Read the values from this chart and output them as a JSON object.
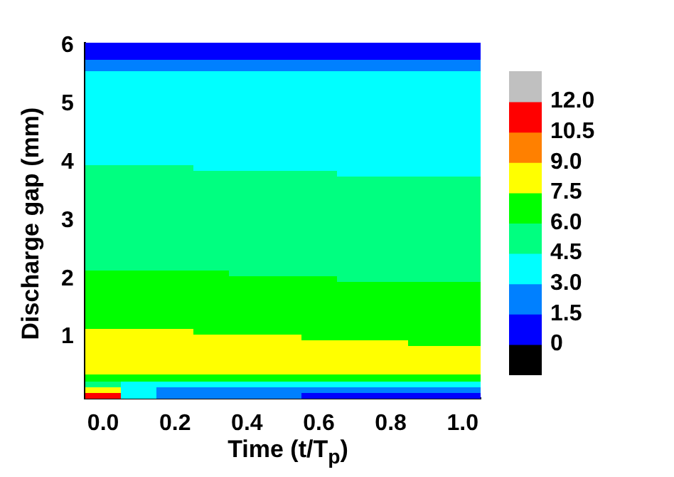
{
  "chart_data": {
    "type": "heatmap",
    "xlabel": "Time (t/T$_{p}$)",
    "ylabel": "Discharge gap (mm)",
    "categories": [
      "0.0",
      null,
      "0.2",
      null,
      "0.4",
      null,
      "0.6",
      null,
      "0.8",
      null,
      "1.0"
    ],
    "y_categories": [
      "6",
      null,
      null,
      null,
      null,
      null,
      null,
      null,
      null,
      null,
      "5",
      null,
      null,
      null,
      null,
      null,
      null,
      null,
      null,
      null,
      "4",
      null,
      null,
      null,
      null,
      null,
      null,
      null,
      null,
      null,
      "3",
      null,
      null,
      null,
      null,
      null,
      null,
      null,
      null,
      null,
      "2",
      null,
      null,
      null,
      null,
      null,
      null,
      null,
      null,
      null,
      "1",
      null,
      null,
      null,
      null,
      null,
      null,
      null,
      null,
      null,
      null
    ],
    "clim": [
      -1.5,
      13.5
    ],
    "cticks": [
      0,
      1.5,
      {
        "value": 3,
        "label": "3.0"
      },
      4.5,
      {
        "value": 6,
        "label": "6.0"
      },
      7.5,
      {
        "value": 9,
        "label": "9.0"
      },
      10.5,
      {
        "value": 12,
        "label": "12.0"
      }
    ],
    "colors": [
      "#000000",
      "#0000ff",
      "#0080ff",
      "#00ffff",
      "#00ff80",
      "#00ff00",
      "#ffff00",
      "#ff8000",
      "#ff0000",
      "#c0c0c0"
    ],
    "cells": [
      [
        0.75,
        0.75,
        0.75,
        0.75,
        0.75,
        0.75,
        0.75,
        0.75,
        0.75,
        0.75,
        0.75
      ],
      [
        0.75,
        0.75,
        0.75,
        0.75,
        0.75,
        0.75,
        0.75,
        0.75,
        0.75,
        0.75,
        0.75
      ],
      [
        0.75,
        0.75,
        0.75,
        0.75,
        0.75,
        0.75,
        0.75,
        0.75,
        0.75,
        0.75,
        0.75
      ],
      [
        2.25,
        2.25,
        2.25,
        2.25,
        2.25,
        2.25,
        2.25,
        2.25,
        2.25,
        2.25,
        2.25
      ],
      [
        2.25,
        2.25,
        2.25,
        2.25,
        2.25,
        2.25,
        2.25,
        2.25,
        2.25,
        2.25,
        2.25
      ],
      [
        3.75,
        3.75,
        3.75,
        3.75,
        3.75,
        3.75,
        3.75,
        3.75,
        3.75,
        3.75,
        3.75
      ],
      [
        3.75,
        3.75,
        3.75,
        3.75,
        3.75,
        3.75,
        3.75,
        3.75,
        3.75,
        3.75,
        3.75
      ],
      [
        3.75,
        3.75,
        3.75,
        3.75,
        3.75,
        3.75,
        3.75,
        3.75,
        3.75,
        3.75,
        3.75
      ],
      [
        3.75,
        3.75,
        3.75,
        3.75,
        3.75,
        3.75,
        3.75,
        3.75,
        3.75,
        3.75,
        3.75
      ],
      [
        3.75,
        3.75,
        3.75,
        3.75,
        3.75,
        3.75,
        3.75,
        3.75,
        3.75,
        3.75,
        3.75
      ],
      [
        3.75,
        3.75,
        3.75,
        3.75,
        3.75,
        3.75,
        3.75,
        3.75,
        3.75,
        3.75,
        3.75
      ],
      [
        3.75,
        3.75,
        3.75,
        3.75,
        3.75,
        3.75,
        3.75,
        3.75,
        3.75,
        3.75,
        3.75
      ],
      [
        3.75,
        3.75,
        3.75,
        3.75,
        3.75,
        3.75,
        3.75,
        3.75,
        3.75,
        3.75,
        3.75
      ],
      [
        3.75,
        3.75,
        3.75,
        3.75,
        3.75,
        3.75,
        3.75,
        3.75,
        3.75,
        3.75,
        3.75
      ],
      [
        3.75,
        3.75,
        3.75,
        3.75,
        3.75,
        3.75,
        3.75,
        3.75,
        3.75,
        3.75,
        3.75
      ],
      [
        3.75,
        3.75,
        3.75,
        3.75,
        3.75,
        3.75,
        3.75,
        3.75,
        3.75,
        3.75,
        3.75
      ],
      [
        3.75,
        3.75,
        3.75,
        3.75,
        3.75,
        3.75,
        3.75,
        3.75,
        3.75,
        3.75,
        3.75
      ],
      [
        3.75,
        3.75,
        3.75,
        3.75,
        3.75,
        3.75,
        3.75,
        3.75,
        3.75,
        3.75,
        3.75
      ],
      [
        3.75,
        3.75,
        3.75,
        3.75,
        3.75,
        3.75,
        3.75,
        3.75,
        3.75,
        3.75,
        3.75
      ],
      [
        3.75,
        3.75,
        3.75,
        3.75,
        3.75,
        3.75,
        3.75,
        3.75,
        3.75,
        3.75,
        3.75
      ],
      [
        3.75,
        3.75,
        3.75,
        3.75,
        3.75,
        3.75,
        3.75,
        3.75,
        3.75,
        3.75,
        3.75
      ],
      [
        5.25,
        5.25,
        5.25,
        3.75,
        3.75,
        3.75,
        3.75,
        3.75,
        3.75,
        3.75,
        3.75
      ],
      [
        5.25,
        5.25,
        5.25,
        5.25,
        5.25,
        5.25,
        5.25,
        3.75,
        3.75,
        3.75,
        3.75
      ],
      [
        5.25,
        5.25,
        5.25,
        5.25,
        5.25,
        5.25,
        5.25,
        5.25,
        5.25,
        5.25,
        5.25
      ],
      [
        5.25,
        5.25,
        5.25,
        5.25,
        5.25,
        5.25,
        5.25,
        5.25,
        5.25,
        5.25,
        5.25
      ],
      [
        5.25,
        5.25,
        5.25,
        5.25,
        5.25,
        5.25,
        5.25,
        5.25,
        5.25,
        5.25,
        5.25
      ],
      [
        5.25,
        5.25,
        5.25,
        5.25,
        5.25,
        5.25,
        5.25,
        5.25,
        5.25,
        5.25,
        5.25
      ],
      [
        5.25,
        5.25,
        5.25,
        5.25,
        5.25,
        5.25,
        5.25,
        5.25,
        5.25,
        5.25,
        5.25
      ],
      [
        5.25,
        5.25,
        5.25,
        5.25,
        5.25,
        5.25,
        5.25,
        5.25,
        5.25,
        5.25,
        5.25
      ],
      [
        5.25,
        5.25,
        5.25,
        5.25,
        5.25,
        5.25,
        5.25,
        5.25,
        5.25,
        5.25,
        5.25
      ],
      [
        5.25,
        5.25,
        5.25,
        5.25,
        5.25,
        5.25,
        5.25,
        5.25,
        5.25,
        5.25,
        5.25
      ],
      [
        5.25,
        5.25,
        5.25,
        5.25,
        5.25,
        5.25,
        5.25,
        5.25,
        5.25,
        5.25,
        5.25
      ],
      [
        5.25,
        5.25,
        5.25,
        5.25,
        5.25,
        5.25,
        5.25,
        5.25,
        5.25,
        5.25,
        5.25
      ],
      [
        5.25,
        5.25,
        5.25,
        5.25,
        5.25,
        5.25,
        5.25,
        5.25,
        5.25,
        5.25,
        5.25
      ],
      [
        5.25,
        5.25,
        5.25,
        5.25,
        5.25,
        5.25,
        5.25,
        5.25,
        5.25,
        5.25,
        5.25
      ],
      [
        5.25,
        5.25,
        5.25,
        5.25,
        5.25,
        5.25,
        5.25,
        5.25,
        5.25,
        5.25,
        5.25
      ],
      [
        5.25,
        5.25,
        5.25,
        5.25,
        5.25,
        5.25,
        5.25,
        5.25,
        5.25,
        5.25,
        5.25
      ],
      [
        5.25,
        5.25,
        5.25,
        5.25,
        5.25,
        5.25,
        5.25,
        5.25,
        5.25,
        5.25,
        5.25
      ],
      [
        5.25,
        5.25,
        5.25,
        5.25,
        5.25,
        5.25,
        5.25,
        5.25,
        5.25,
        5.25,
        5.25
      ],
      [
        6.75,
        6.75,
        6.75,
        6.75,
        5.25,
        5.25,
        5.25,
        5.25,
        5.25,
        5.25,
        5.25
      ],
      [
        6.75,
        6.75,
        6.75,
        6.75,
        6.75,
        6.75,
        6.75,
        5.25,
        5.25,
        5.25,
        5.25
      ],
      [
        6.75,
        6.75,
        6.75,
        6.75,
        6.75,
        6.75,
        6.75,
        6.75,
        6.75,
        6.75,
        6.75
      ],
      [
        6.75,
        6.75,
        6.75,
        6.75,
        6.75,
        6.75,
        6.75,
        6.75,
        6.75,
        6.75,
        6.75
      ],
      [
        6.75,
        6.75,
        6.75,
        6.75,
        6.75,
        6.75,
        6.75,
        6.75,
        6.75,
        6.75,
        6.75
      ],
      [
        6.75,
        6.75,
        6.75,
        6.75,
        6.75,
        6.75,
        6.75,
        6.75,
        6.75,
        6.75,
        6.75
      ],
      [
        6.75,
        6.75,
        6.75,
        6.75,
        6.75,
        6.75,
        6.75,
        6.75,
        6.75,
        6.75,
        6.75
      ],
      [
        6.75,
        6.75,
        6.75,
        6.75,
        6.75,
        6.75,
        6.75,
        6.75,
        6.75,
        6.75,
        6.75
      ],
      [
        6.75,
        6.75,
        6.75,
        6.75,
        6.75,
        6.75,
        6.75,
        6.75,
        6.75,
        6.75,
        6.75
      ],
      [
        6.75,
        6.75,
        6.75,
        6.75,
        6.75,
        6.75,
        6.75,
        6.75,
        6.75,
        6.75,
        6.75
      ],
      [
        8.25,
        8.25,
        8.25,
        6.75,
        6.75,
        6.75,
        6.75,
        6.75,
        6.75,
        6.75,
        6.75
      ],
      [
        8.25,
        8.25,
        8.25,
        8.25,
        8.25,
        8.25,
        6.75,
        6.75,
        6.75,
        6.75,
        6.75
      ],
      [
        8.25,
        8.25,
        8.25,
        8.25,
        8.25,
        8.25,
        8.25,
        8.25,
        8.25,
        6.75,
        6.75
      ],
      [
        8.25,
        8.25,
        8.25,
        8.25,
        8.25,
        8.25,
        8.25,
        8.25,
        8.25,
        8.25,
        8.25
      ],
      [
        8.25,
        8.25,
        8.25,
        8.25,
        8.25,
        8.25,
        8.25,
        8.25,
        8.25,
        8.25,
        8.25
      ],
      [
        8.25,
        8.25,
        8.25,
        8.25,
        8.25,
        8.25,
        8.25,
        8.25,
        8.25,
        8.25,
        8.25
      ],
      [
        8.25,
        8.25,
        8.25,
        8.25,
        8.25,
        8.25,
        8.25,
        8.25,
        8.25,
        8.25,
        8.25
      ],
      [
        8.25,
        8.25,
        8.25,
        8.25,
        8.25,
        8.25,
        8.25,
        8.25,
        8.25,
        8.25,
        8.25
      ],
      [
        6.75,
        6.75,
        6.75,
        6.75,
        6.75,
        6.75,
        6.75,
        6.75,
        6.75,
        6.75,
        6.75
      ],
      [
        5.25,
        3.75,
        3.75,
        3.75,
        3.75,
        3.75,
        3.75,
        3.75,
        3.75,
        3.75,
        3.75
      ],
      [
        8.25,
        3.75,
        2.25,
        2.25,
        2.25,
        2.25,
        2.25,
        2.25,
        2.25,
        2.25,
        2.25
      ],
      [
        11.25,
        3.75,
        2.25,
        2.25,
        2.25,
        2.25,
        0.75,
        0.75,
        0.75,
        0.75,
        0.75
      ]
    ]
  }
}
